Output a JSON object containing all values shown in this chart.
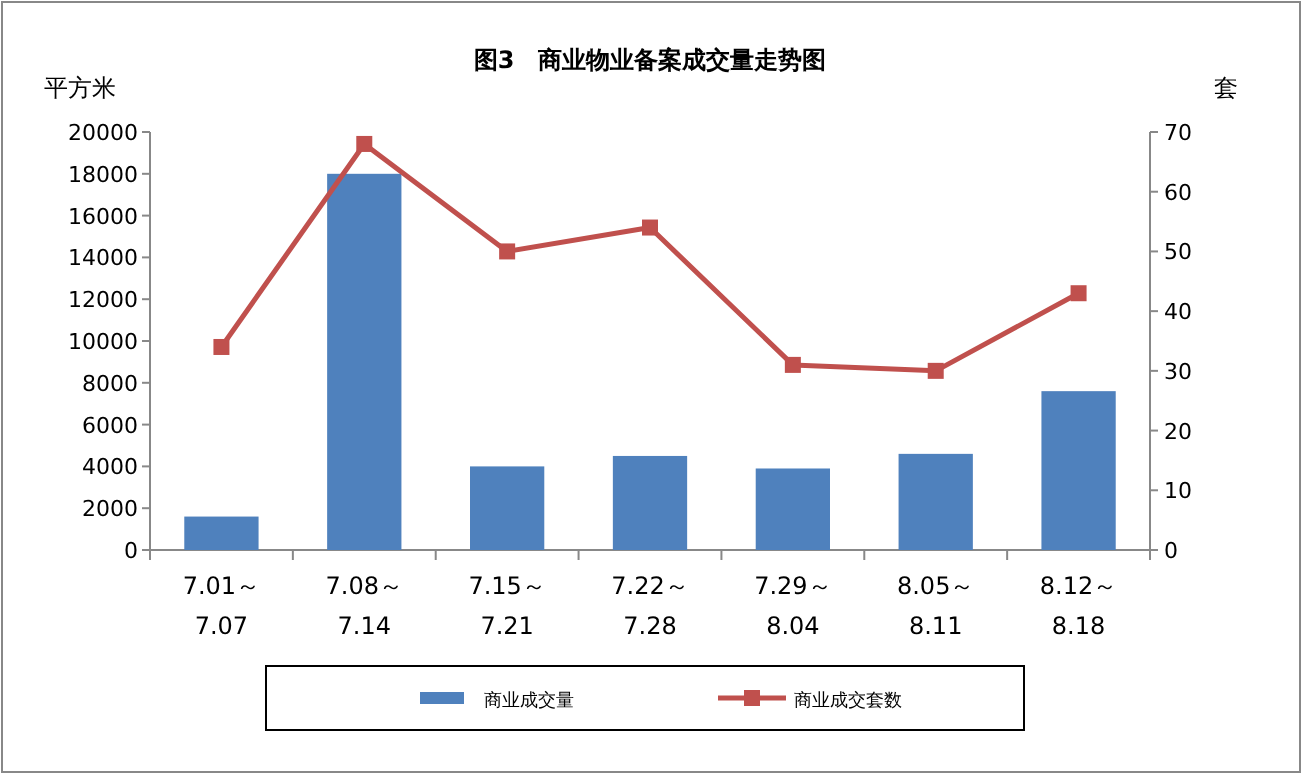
{
  "chart_data": {
    "type": "bar",
    "title": "图3　商业物业备案成交量走势图",
    "ylabel": "平方米",
    "y2label": "套",
    "categories": [
      "7.01～7.07",
      "7.08～7.14",
      "7.15～7.21",
      "7.22～7.28",
      "7.29～8.04",
      "8.05～8.11",
      "8.12～8.18"
    ],
    "series": [
      {
        "name": "商业成交量",
        "color": "#4f81bd",
        "values": [
          1600,
          18000,
          4000,
          4500,
          3900,
          4600,
          7600
        ]
      },
      {
        "name": "商业成交套数",
        "type": "line",
        "axis": "y2",
        "color": "#c0504d",
        "marker": "square",
        "values": [
          34,
          68,
          50,
          54,
          31,
          30,
          43
        ]
      }
    ],
    "ylim": [
      0,
      20000
    ],
    "yticks": [
      0,
      2000,
      4000,
      6000,
      8000,
      10000,
      12000,
      14000,
      16000,
      18000,
      20000
    ],
    "y2lim": [
      0,
      70
    ],
    "y2ticks": [
      0,
      10,
      20,
      30,
      40,
      50,
      60,
      70
    ],
    "legend": "bottom"
  }
}
